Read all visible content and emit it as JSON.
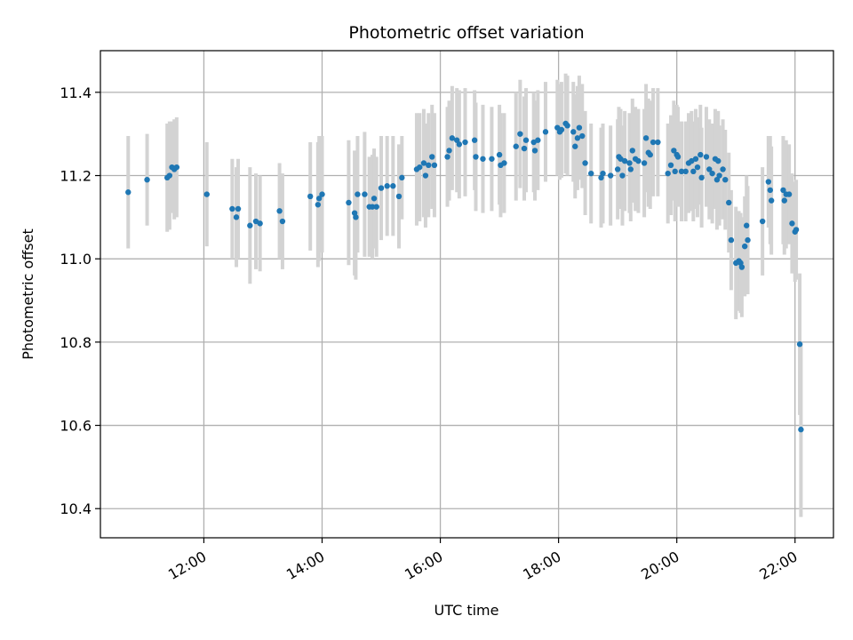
{
  "chart_data": {
    "type": "scatter",
    "title": "Photometric offset variation",
    "xlabel": "UTC time",
    "ylabel": "Photometric offset",
    "x_unit": "hours UTC",
    "xlim": [
      10.25,
      22.65
    ],
    "ylim": [
      10.33,
      11.5
    ],
    "xticks": [
      12,
      14,
      16,
      18,
      20,
      22
    ],
    "xtick_labels": [
      "12:00",
      "14:00",
      "16:00",
      "18:00",
      "20:00",
      "22:00"
    ],
    "yticks": [
      10.4,
      10.6,
      10.8,
      11.0,
      11.2,
      11.4
    ],
    "ytick_labels": [
      "10.4",
      "10.6",
      "10.8",
      "11.0",
      "11.2",
      "11.4"
    ],
    "grid": true,
    "point_color": "#1f77b4",
    "errorbar_color": "#d3d3d3",
    "points": [
      [
        10.72,
        11.16,
        0.135
      ],
      [
        11.04,
        11.19,
        0.11
      ],
      [
        11.38,
        11.195,
        0.13
      ],
      [
        11.42,
        11.2,
        0.13
      ],
      [
        11.46,
        11.22,
        0.11
      ],
      [
        11.5,
        11.215,
        0.12
      ],
      [
        11.54,
        11.22,
        0.12
      ],
      [
        12.05,
        11.155,
        0.125
      ],
      [
        12.48,
        11.12,
        0.12
      ],
      [
        12.55,
        11.1,
        0.12
      ],
      [
        12.58,
        11.12,
        0.12
      ],
      [
        12.78,
        11.08,
        0.14
      ],
      [
        12.88,
        11.09,
        0.115
      ],
      [
        12.95,
        11.085,
        0.115
      ],
      [
        13.28,
        11.115,
        0.115
      ],
      [
        13.33,
        11.09,
        0.115
      ],
      [
        13.8,
        11.15,
        0.13
      ],
      [
        13.93,
        11.13,
        0.15
      ],
      [
        13.95,
        11.145,
        0.15
      ],
      [
        14.0,
        11.155,
        0.14
      ],
      [
        14.45,
        11.135,
        0.15
      ],
      [
        14.55,
        11.11,
        0.15
      ],
      [
        14.57,
        11.1,
        0.15
      ],
      [
        14.6,
        11.155,
        0.14
      ],
      [
        14.72,
        11.155,
        0.15
      ],
      [
        14.8,
        11.125,
        0.12
      ],
      [
        14.85,
        11.125,
        0.125
      ],
      [
        14.88,
        11.145,
        0.12
      ],
      [
        14.92,
        11.125,
        0.12
      ],
      [
        15.0,
        11.17,
        0.125
      ],
      [
        15.1,
        11.175,
        0.12
      ],
      [
        15.2,
        11.175,
        0.12
      ],
      [
        15.3,
        11.15,
        0.125
      ],
      [
        15.35,
        11.195,
        0.1
      ],
      [
        15.6,
        11.215,
        0.135
      ],
      [
        15.65,
        11.22,
        0.13
      ],
      [
        15.72,
        11.23,
        0.13
      ],
      [
        15.75,
        11.2,
        0.125
      ],
      [
        15.8,
        11.225,
        0.125
      ],
      [
        15.86,
        11.245,
        0.125
      ],
      [
        15.9,
        11.225,
        0.125
      ],
      [
        16.12,
        11.245,
        0.12
      ],
      [
        16.15,
        11.26,
        0.12
      ],
      [
        16.2,
        11.29,
        0.125
      ],
      [
        16.28,
        11.285,
        0.125
      ],
      [
        16.32,
        11.275,
        0.13
      ],
      [
        16.42,
        11.28,
        0.13
      ],
      [
        16.58,
        11.285,
        0.12
      ],
      [
        16.6,
        11.245,
        0.13
      ],
      [
        16.72,
        11.24,
        0.13
      ],
      [
        16.87,
        11.24,
        0.125
      ],
      [
        17.0,
        11.25,
        0.12
      ],
      [
        17.02,
        11.225,
        0.125
      ],
      [
        17.08,
        11.23,
        0.12
      ],
      [
        17.28,
        11.27,
        0.13
      ],
      [
        17.35,
        11.3,
        0.13
      ],
      [
        17.42,
        11.265,
        0.125
      ],
      [
        17.45,
        11.285,
        0.125
      ],
      [
        17.58,
        11.28,
        0.12
      ],
      [
        17.6,
        11.26,
        0.12
      ],
      [
        17.65,
        11.285,
        0.12
      ],
      [
        17.78,
        11.305,
        0.12
      ],
      [
        17.98,
        11.315,
        0.115
      ],
      [
        18.02,
        11.305,
        0.115
      ],
      [
        18.05,
        11.31,
        0.115
      ],
      [
        18.12,
        11.325,
        0.12
      ],
      [
        18.15,
        11.32,
        0.12
      ],
      [
        18.25,
        11.305,
        0.12
      ],
      [
        18.28,
        11.27,
        0.125
      ],
      [
        18.32,
        11.29,
        0.125
      ],
      [
        18.35,
        11.315,
        0.125
      ],
      [
        18.4,
        11.295,
        0.125
      ],
      [
        18.45,
        11.23,
        0.125
      ],
      [
        18.55,
        11.205,
        0.12
      ],
      [
        18.72,
        11.195,
        0.12
      ],
      [
        18.75,
        11.205,
        0.12
      ],
      [
        18.88,
        11.2,
        0.12
      ],
      [
        19.0,
        11.215,
        0.12
      ],
      [
        19.02,
        11.245,
        0.12
      ],
      [
        19.05,
        11.24,
        0.12
      ],
      [
        19.08,
        11.2,
        0.12
      ],
      [
        19.12,
        11.235,
        0.12
      ],
      [
        19.2,
        11.23,
        0.12
      ],
      [
        19.22,
        11.215,
        0.125
      ],
      [
        19.25,
        11.26,
        0.125
      ],
      [
        19.3,
        11.24,
        0.125
      ],
      [
        19.35,
        11.235,
        0.125
      ],
      [
        19.45,
        11.23,
        0.13
      ],
      [
        19.48,
        11.29,
        0.13
      ],
      [
        19.52,
        11.255,
        0.13
      ],
      [
        19.55,
        11.25,
        0.13
      ],
      [
        19.6,
        11.28,
        0.13
      ],
      [
        19.68,
        11.28,
        0.13
      ],
      [
        19.85,
        11.205,
        0.12
      ],
      [
        19.9,
        11.225,
        0.12
      ],
      [
        19.95,
        11.26,
        0.12
      ],
      [
        19.97,
        11.21,
        0.12
      ],
      [
        20.0,
        11.25,
        0.12
      ],
      [
        20.02,
        11.245,
        0.12
      ],
      [
        20.08,
        11.21,
        0.12
      ],
      [
        20.15,
        11.21,
        0.12
      ],
      [
        20.2,
        11.23,
        0.12
      ],
      [
        20.25,
        11.235,
        0.12
      ],
      [
        20.28,
        11.21,
        0.12
      ],
      [
        20.32,
        11.24,
        0.12
      ],
      [
        20.35,
        11.22,
        0.12
      ],
      [
        20.4,
        11.25,
        0.12
      ],
      [
        20.42,
        11.195,
        0.12
      ],
      [
        20.5,
        11.245,
        0.12
      ],
      [
        20.55,
        11.215,
        0.12
      ],
      [
        20.6,
        11.205,
        0.12
      ],
      [
        20.65,
        11.24,
        0.12
      ],
      [
        20.68,
        11.19,
        0.12
      ],
      [
        20.7,
        11.235,
        0.12
      ],
      [
        20.72,
        11.2,
        0.12
      ],
      [
        20.78,
        11.215,
        0.12
      ],
      [
        20.82,
        11.19,
        0.12
      ],
      [
        20.88,
        11.135,
        0.12
      ],
      [
        20.92,
        11.045,
        0.12
      ],
      [
        21.0,
        10.99,
        0.135
      ],
      [
        21.05,
        10.995,
        0.12
      ],
      [
        21.08,
        10.99,
        0.12
      ],
      [
        21.1,
        10.98,
        0.12
      ],
      [
        21.15,
        11.03,
        0.12
      ],
      [
        21.18,
        11.08,
        0.12
      ],
      [
        21.2,
        11.045,
        0.13
      ],
      [
        21.45,
        11.09,
        0.13
      ],
      [
        21.55,
        11.185,
        0.11
      ],
      [
        21.58,
        11.165,
        0.13
      ],
      [
        21.6,
        11.14,
        0.13
      ],
      [
        21.8,
        11.165,
        0.13
      ],
      [
        21.82,
        11.14,
        0.13
      ],
      [
        21.85,
        11.155,
        0.13
      ],
      [
        21.9,
        11.155,
        0.12
      ],
      [
        21.95,
        11.085,
        0.12
      ],
      [
        22.0,
        11.065,
        0.12
      ],
      [
        22.02,
        11.07,
        0.12
      ],
      [
        22.08,
        10.795,
        0.17
      ],
      [
        22.1,
        10.59,
        0.21
      ]
    ]
  }
}
